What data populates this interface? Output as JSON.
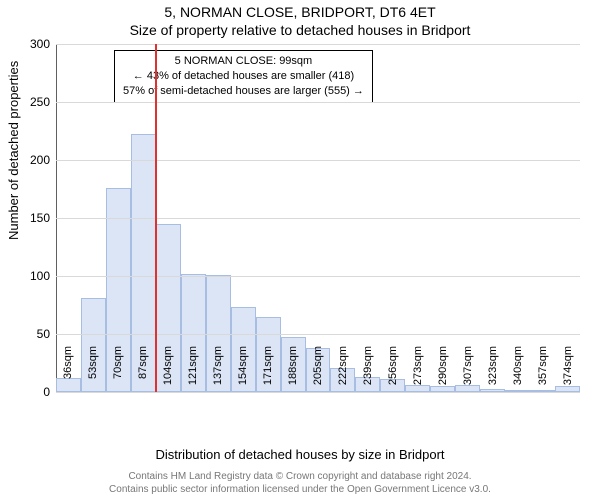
{
  "title_main": "5, NORMAN CLOSE, BRIDPORT, DT6 4ET",
  "title_sub": "Size of property relative to detached houses in Bridport",
  "y_axis_label": "Number of detached properties",
  "x_axis_label": "Distribution of detached houses by size in Bridport",
  "footer_line1": "Contains HM Land Registry data © Crown copyright and database right 2024.",
  "footer_line2": "Contains public sector information licensed under the Open Government Licence v3.0.",
  "chart": {
    "type": "histogram",
    "ymin": 0,
    "ymax": 300,
    "ytick_step": 50,
    "grid_color": "#d9d9d9",
    "axis_color": "#606060",
    "bar_fill": "#dbe5f6",
    "bar_border": "#a7bde2",
    "background_color": "#ffffff",
    "marker_color": "#e03030",
    "marker_x_index": 4,
    "label_fontsize": 11,
    "categories": [
      "36sqm",
      "53sqm",
      "70sqm",
      "87sqm",
      "104sqm",
      "121sqm",
      "137sqm",
      "154sqm",
      "171sqm",
      "188sqm",
      "205sqm",
      "222sqm",
      "239sqm",
      "256sqm",
      "273sqm",
      "290sqm",
      "307sqm",
      "323sqm",
      "340sqm",
      "357sqm",
      "374sqm"
    ],
    "values": [
      12,
      81,
      176,
      222,
      145,
      102,
      101,
      73,
      65,
      47,
      38,
      21,
      13,
      11,
      6,
      5,
      6,
      3,
      2,
      1,
      5
    ]
  },
  "annotation": {
    "line1": "5 NORMAN CLOSE: 99sqm",
    "line2": "← 43% of detached houses are smaller (418)",
    "line3": "57% of semi-detached houses are larger (555) →"
  }
}
